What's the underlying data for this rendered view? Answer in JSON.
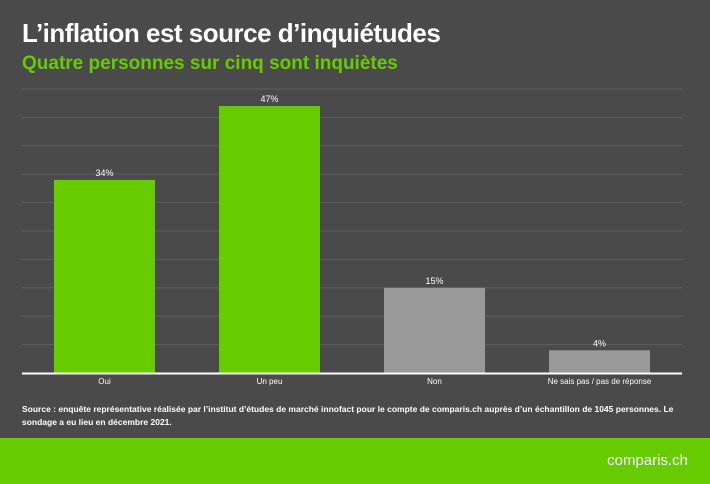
{
  "title": "L’inflation est source d’inquiétudes",
  "subtitle": "Quatre personnes sur cinq sont inquiètes",
  "source": "Source : enquête représentative réalisée par l’institut d’études de marché innofact pour le compte de comparis.ch auprès d’un échantillon de 1045 personnes. Le sondage a eu lieu en décembre 2021.",
  "logo": "comparis.ch",
  "colors": {
    "background": "#4a4a4a",
    "green": "#66cc00",
    "grey": "#999999"
  },
  "chart_data": {
    "type": "bar",
    "categories": [
      "Oui",
      "Un peu",
      "Non",
      "Ne sais pas / pas de réponse"
    ],
    "values": [
      34,
      47,
      15,
      4
    ],
    "labels": [
      "34%",
      "47%",
      "15%",
      "4%"
    ],
    "bar_colors": [
      "#66cc00",
      "#66cc00",
      "#999999",
      "#999999"
    ],
    "ylim": [
      0,
      50
    ],
    "grid": true,
    "ytick_step": 5
  }
}
